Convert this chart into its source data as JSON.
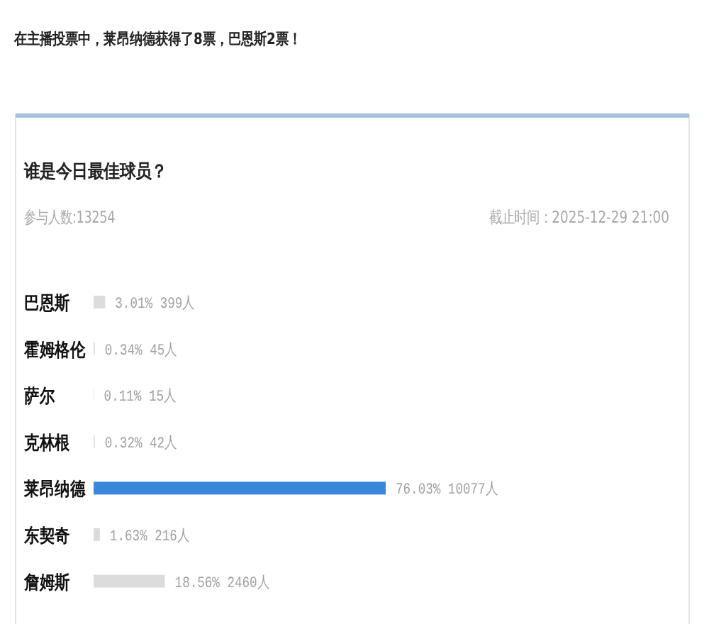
{
  "chart_data": {
    "type": "bar",
    "orientation": "horizontal",
    "title": "在主播投票中，莱昂纳德获得了8票，巴恩斯2票！",
    "subtitle": "谁是今日最佳球员？",
    "annotations": [
      "参与人数:13254",
      "截止时间：2025-12-29 21:00"
    ],
    "categories": [
      "巴恩斯",
      "霍姆格伦",
      "萨尔",
      "克林根",
      "莱昂纳德",
      "东契奇",
      "詹姆斯"
    ],
    "values": [
      3.01,
      0.34,
      0.11,
      0.32,
      76.03,
      1.63,
      18.56
    ],
    "colors": [
      "#dcdcdc",
      "#dcdcdc",
      "#dcdcdc",
      "#dcdcdc",
      "#3a86d8",
      "#dcdcdc",
      "#dcdcdc"
    ],
    "value_labels": [
      "3.01% 399人",
      "0.34% 45人",
      "0.11% 15人",
      "0.32% 42人",
      "76.03% 10077人",
      "1.63% 216人",
      "18.56% 2460人"
    ]
  }
}
